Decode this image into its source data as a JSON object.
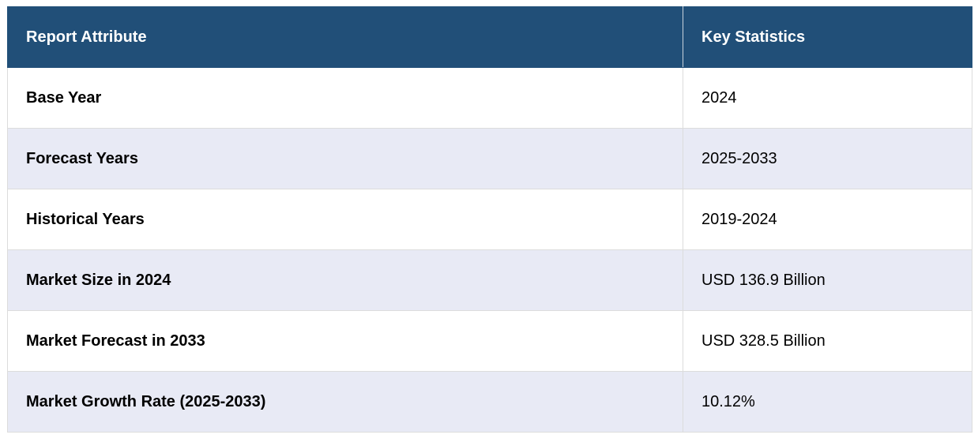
{
  "table": {
    "header": [
      "Report Attribute",
      "Key Statistics"
    ],
    "rows": [
      [
        "Base Year",
        "2024"
      ],
      [
        "Forecast Years",
        "2025-2033"
      ],
      [
        "Historical Years",
        "2019-2024"
      ],
      [
        "Market Size in 2024",
        "USD 136.9 Billion"
      ],
      [
        "Market Forecast in 2033",
        "USD 328.5 Billion"
      ],
      [
        "Market Growth Rate (2025-2033)",
        "10.12%"
      ]
    ]
  }
}
